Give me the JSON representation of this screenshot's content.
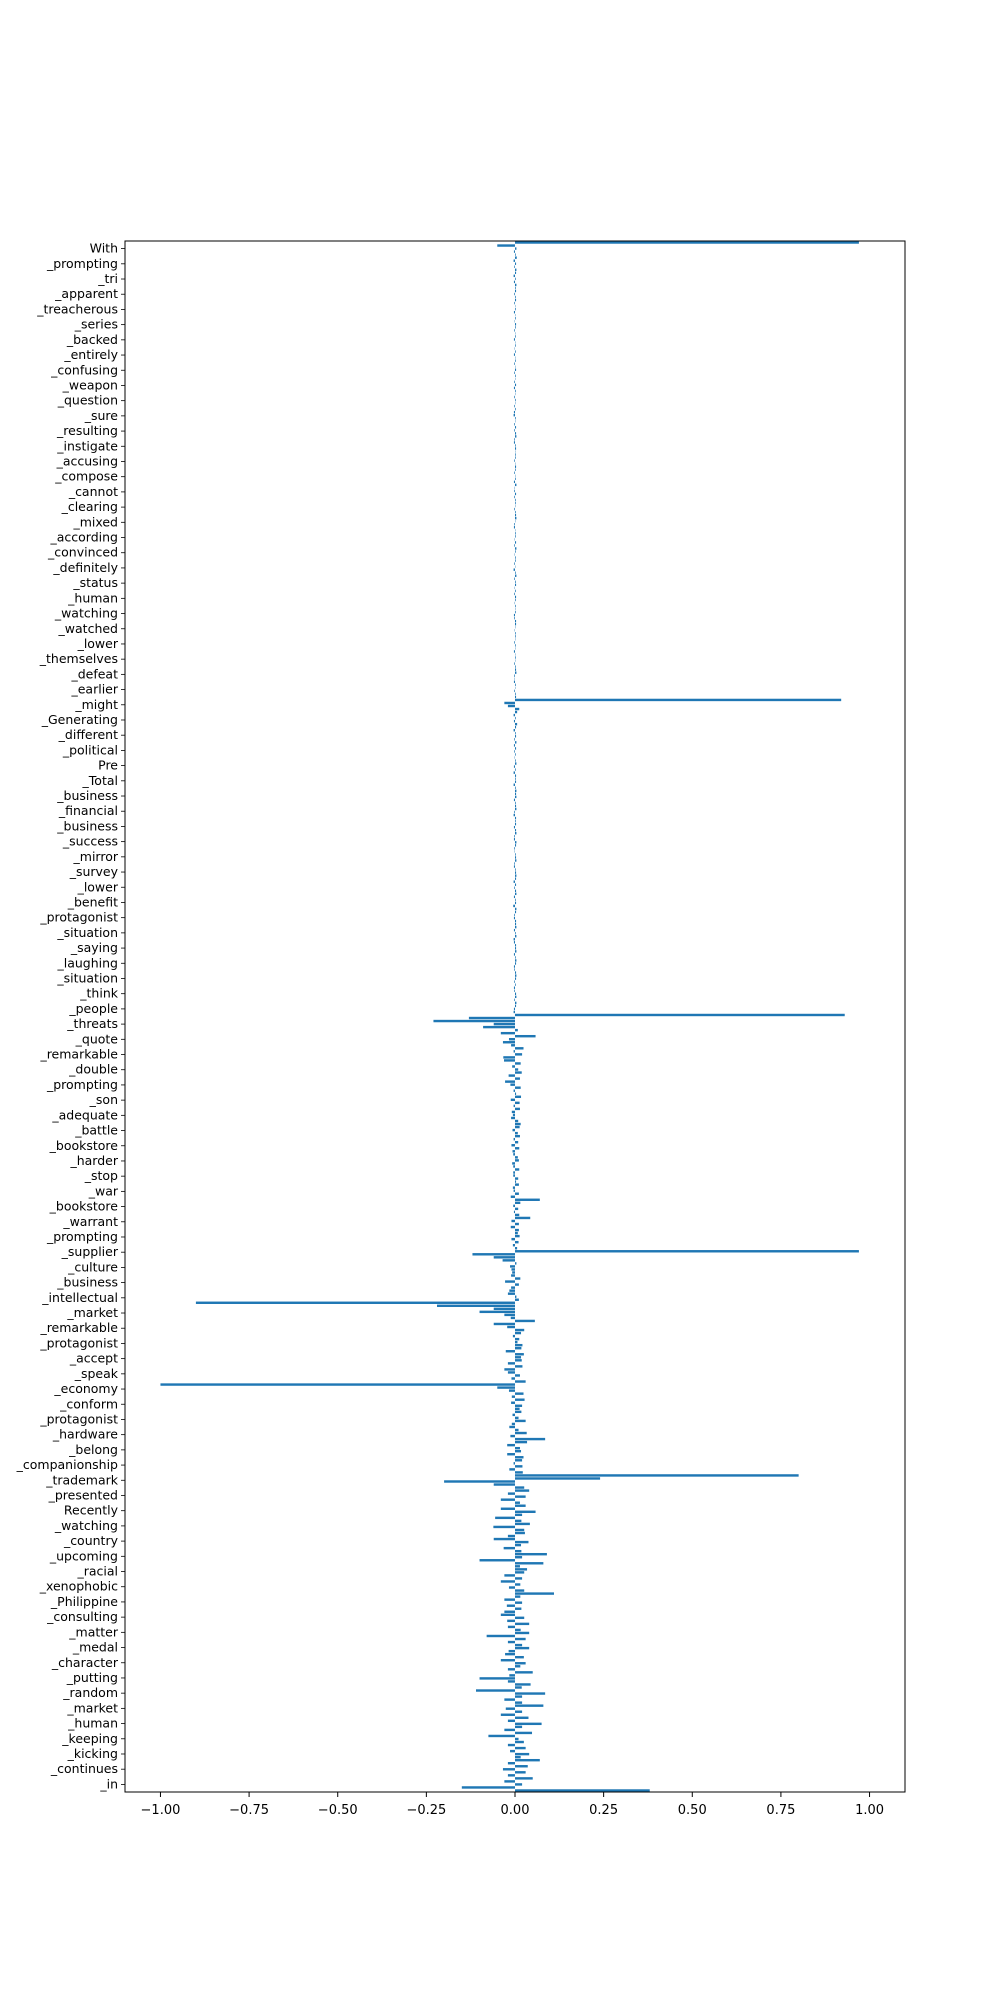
{
  "chart_data": {
    "type": "bar",
    "orientation": "horizontal",
    "title": "",
    "xlabel": "",
    "ylabel": "",
    "xlim": [
      -1.1,
      1.1
    ],
    "xticks": [
      -1.0,
      -0.75,
      -0.5,
      -0.25,
      0.0,
      0.25,
      0.5,
      0.75,
      1.0
    ],
    "xtick_labels": [
      "−1.00",
      "−0.75",
      "−0.50",
      "−0.25",
      "0.00",
      "0.25",
      "0.50",
      "0.75",
      "1.00"
    ],
    "grid": false,
    "legend": "none",
    "bar_color": "#1f77b4",
    "category_count": 500,
    "visible_category_labels": [
      "With",
      "_prompting",
      "_tri",
      "_apparent",
      "_treacherous",
      "_series",
      "_backed",
      "_entirely",
      "_confusing",
      "_weapon",
      "_question",
      "_sure",
      "_resulting",
      "_instigate",
      "_accusing",
      "_compose",
      "_cannot",
      "_clearing",
      "_mixed",
      "_according",
      "_convinced",
      "_definitely",
      "_status",
      "_human",
      "_watching",
      "_watched",
      "_lower",
      "_themselves",
      "_defeat",
      "_earlier",
      "_might",
      "_Generating",
      "_different",
      "_political",
      "Pre",
      "_Total",
      "_business",
      "_financial",
      "_business",
      "_success",
      "_mirror",
      "_survey",
      "_lower",
      "_benefit",
      "_protagonist",
      "_situation",
      "_saying",
      "_laughing",
      "_situation",
      "_think",
      "_people",
      "_threats",
      "_quote",
      "_remarkable",
      "_double",
      "_prompting",
      "_son",
      "_adequate",
      "_battle",
      "_bookstore",
      "_harder",
      "_stop",
      "_war",
      "_bookstore",
      "_warrant",
      "_prompting",
      "_supplier",
      "_culture",
      "_business",
      "_intellectual",
      "_market",
      "_remarkable",
      "_protagonist",
      "_accept",
      "_speak",
      "_economy",
      "_conform",
      "_protagonist",
      "_hardware",
      "_belong",
      "_companionship",
      "_trademark",
      "_presented",
      "Recently",
      "_watching",
      "_country",
      "_upcoming",
      "_racial",
      "_xenophobic",
      "_Philippine",
      "_consulting",
      "_matter",
      "_medal",
      "_character",
      "_putting",
      "_random",
      "_market",
      "_human",
      "_keeping",
      "_kicking",
      "_continues",
      "_in"
    ],
    "values": [
      0.97,
      -0.05,
      0.004,
      -0.003,
      0.002,
      0.005,
      -0.004,
      0.003,
      -0.002,
      0.004,
      0.003,
      -0.004,
      0.002,
      -0.003,
      0.004,
      0.002,
      0.003,
      -0.002,
      0.002,
      0.003,
      -0.002,
      0.001,
      0.002,
      -0.003,
      0.001,
      0.002,
      -0.001,
      0.003,
      0.002,
      -0.002,
      0.001,
      0.002,
      -0.003,
      0.001,
      0.002,
      -0.001,
      0.002,
      -0.003,
      0.001,
      0.002,
      -0.002,
      0.001,
      0.003,
      -0.002,
      0.002,
      0.001,
      -0.002,
      0.003,
      -0.003,
      0.002,
      0.001,
      -0.002,
      0.002,
      0.001,
      -0.002,
      0.002,
      -0.003,
      -0.004,
      0.002,
      0.001,
      -0.002,
      0.003,
      -0.002,
      0.003,
      0.004,
      -0.002,
      -0.003,
      0.002,
      0.003,
      0.001,
      0.002,
      0.002,
      -0.002,
      0.001,
      0.003,
      0.002,
      -0.002,
      0.001,
      0.002,
      -0.003,
      0.004,
      -0.001,
      -0.002,
      0.003,
      -0.002,
      0.002,
      0.002,
      0.001,
      -0.002,
      0.002,
      0.003,
      0.004,
      0.001,
      -0.002,
      -0.003,
      0.001,
      0.002,
      0.002,
      -0.001,
      0.003,
      -0.002,
      0.004,
      0.002,
      -0.001,
      0.002,
      0.002,
      -0.002,
      0.001,
      -0.004,
      0.002,
      0.004,
      -0.002,
      0.002,
      0.003,
      -0.001,
      0.002,
      -0.002,
      0.003,
      0.002,
      -0.001,
      0.002,
      0.001,
      0.002,
      -0.003,
      -0.002,
      0.003,
      0.003,
      0.001,
      -0.001,
      0.002,
      0.002,
      0.001,
      -0.002,
      0.002,
      0.001,
      -0.003,
      0.001,
      0.002,
      0.001,
      -0.002,
      0.002,
      0.003,
      0.004,
      -0.002,
      -0.001,
      -0.003,
      0.002,
      0.001,
      -0.002,
      0.002,
      0.003,
      0.92,
      -0.03,
      -0.02,
      0.012,
      0.006,
      -0.004,
      0.002,
      -0.003,
      0.006,
      0.003,
      -0.004,
      0.002,
      0.003,
      -0.002,
      0.004,
      -0.003,
      0.003,
      -0.002,
      0.002,
      -0.001,
      0.002,
      0.004,
      -0.003,
      0.002,
      -0.004,
      0.003,
      0.002,
      0.003,
      -0.004,
      0.002,
      0.004,
      0.003,
      0.004,
      -0.003,
      0.002,
      0.003,
      0.004,
      -0.002,
      -0.004,
      0.003,
      0.002,
      0.003,
      -0.003,
      0.003,
      0.004,
      -0.002,
      -0.003,
      0.004,
      0.003,
      -0.002,
      -0.001,
      0.002,
      0.003,
      0.004,
      -0.002,
      -0.003,
      0.002,
      0.003,
      0.004,
      0.003,
      -0.004,
      0.003,
      -0.002,
      0.003,
      0.004,
      -0.003,
      0.002,
      0.003,
      -0.005,
      0.004,
      0.003,
      -0.002,
      -0.003,
      0.003,
      0.003,
      0.004,
      -0.003,
      0.002,
      0.004,
      -0.004,
      -0.003,
      0.003,
      0.003,
      0.004,
      -0.003,
      0.002,
      0.004,
      0.003,
      -0.003,
      -0.002,
      0.003,
      0.004,
      0.003,
      -0.002,
      0.002,
      -0.003,
      -0.002,
      0.003,
      0.004,
      -0.002,
      0.004,
      0.003,
      -0.003,
      -0.004,
      0.93,
      -0.13,
      -0.23,
      -0.06,
      -0.09,
      0.008,
      -0.04,
      0.058,
      -0.017,
      -0.034,
      -0.011,
      0.024,
      -0.004,
      0.02,
      -0.033,
      -0.031,
      0.016,
      -0.008,
      0.009,
      0.019,
      -0.018,
      0.014,
      -0.028,
      -0.013,
      0.016,
      -0.004,
      0.003,
      0.017,
      -0.012,
      0.013,
      -0.004,
      0.014,
      -0.009,
      -0.006,
      -0.011,
      0.009,
      0.016,
      0.013,
      -0.007,
      0.008,
      0.014,
      -0.004,
      0.009,
      -0.01,
      0.012,
      -0.007,
      -0.005,
      0.008,
      0.011,
      -0.008,
      -0.005,
      0.012,
      -0.005,
      -0.005,
      0.009,
      0.003,
      0.011,
      -0.006,
      -0.004,
      0.011,
      -0.012,
      0.07,
      0.015,
      -0.005,
      0.009,
      -0.003,
      0.012,
      0.043,
      -0.01,
      0.011,
      -0.012,
      0.011,
      0.008,
      0.013,
      -0.01,
      0.01,
      -0.006,
      0.006,
      0.97,
      -0.12,
      -0.06,
      -0.035,
      0.004,
      -0.014,
      -0.01,
      -0.008,
      -0.011,
      0.015,
      -0.028,
      0.011,
      -0.011,
      -0.016,
      -0.02,
      0.004,
      0.011,
      -0.9,
      -0.22,
      -0.06,
      -0.1,
      -0.03,
      -0.012,
      0.056,
      -0.06,
      -0.022,
      0.026,
      0.017,
      -0.006,
      0.012,
      0.007,
      0.021,
      0.018,
      -0.026,
      0.025,
      0.017,
      0.019,
      -0.02,
      0.021,
      -0.03,
      -0.02,
      0.014,
      -0.01,
      0.03,
      -1.0,
      -0.05,
      -0.017,
      0.024,
      -0.009,
      0.027,
      -0.011,
      0.02,
      0.013,
      0.018,
      -0.007,
      0.01,
      0.03,
      -0.009,
      -0.016,
      0.01,
      0.033,
      -0.013,
      0.085,
      0.034,
      -0.022,
      0.014,
      0.017,
      -0.022,
      0.024,
      0.02,
      -0.004,
      0.021,
      -0.016,
      0.022,
      0.8,
      0.24,
      -0.2,
      -0.06,
      0.026,
      0.04,
      -0.02,
      0.03,
      -0.04,
      0.014,
      0.03,
      -0.04,
      0.058,
      0.02,
      -0.056,
      0.018,
      0.042,
      -0.061,
      0.026,
      0.028,
      -0.02,
      -0.06,
      0.038,
      0.017,
      -0.032,
      0.018,
      0.09,
      0.02,
      -0.1,
      0.08,
      0.014,
      0.034,
      0.026,
      -0.03,
      0.02,
      -0.04,
      0.015,
      -0.017,
      0.026,
      0.11,
      0.015,
      -0.03,
      0.02,
      -0.023,
      0.018,
      -0.03,
      -0.04,
      0.026,
      -0.022,
      0.04,
      -0.02,
      0.016,
      0.04,
      -0.08,
      0.03,
      -0.02,
      0.02,
      0.04,
      -0.018,
      -0.028,
      0.025,
      -0.04,
      0.03,
      0.015,
      -0.02,
      0.05,
      -0.016,
      -0.1,
      -0.02,
      0.044,
      0.019,
      -0.11,
      0.085,
      0.02,
      -0.03,
      0.02,
      0.08,
      -0.026,
      0.02,
      -0.04,
      0.038,
      -0.02,
      0.075,
      0.02,
      -0.03,
      0.048,
      -0.075,
      0.01,
      0.025,
      -0.02,
      0.03,
      -0.014,
      0.04,
      0.016,
      0.07,
      -0.02,
      0.036,
      -0.034,
      0.03,
      -0.02,
      0.05,
      -0.03,
      0.02,
      -0.15,
      0.38
    ]
  }
}
